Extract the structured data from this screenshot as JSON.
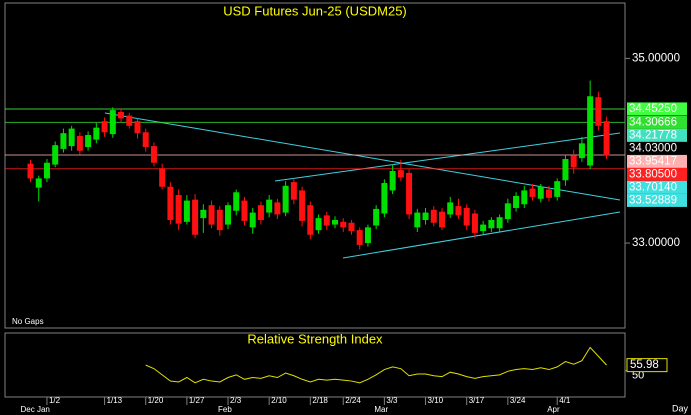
{
  "chart_data": [
    {
      "type": "candlestick",
      "title": "USD Futures Jun-25 (USDM25)",
      "mode_label": "No Gaps",
      "period_label": "Day",
      "categories": [
        null,
        null,
        "1/2",
        null,
        null,
        null,
        null,
        null,
        null,
        "1/13",
        null,
        null,
        null,
        null,
        "1/20",
        null,
        null,
        null,
        null,
        "1/27",
        null,
        null,
        null,
        null,
        "2/3",
        null,
        null,
        null,
        null,
        "2/10",
        null,
        null,
        null,
        null,
        "2/18",
        null,
        null,
        null,
        "2/24",
        null,
        null,
        null,
        null,
        "3/3",
        null,
        null,
        null,
        null,
        "3/10",
        null,
        null,
        null,
        null,
        "3/17",
        null,
        null,
        null,
        null,
        "3/24",
        null,
        null,
        null,
        null,
        null,
        "4/1",
        null,
        null,
        null,
        null,
        null,
        null
      ],
      "months": [
        "Dec",
        null,
        "Jan",
        null,
        null,
        null,
        null,
        null,
        null,
        null,
        null,
        null,
        null,
        null,
        null,
        null,
        null,
        null,
        null,
        null,
        null,
        null,
        null,
        null,
        "Feb",
        null,
        null,
        null,
        null,
        null,
        null,
        null,
        null,
        null,
        null,
        null,
        null,
        null,
        null,
        null,
        null,
        null,
        null,
        "Mar",
        null,
        null,
        null,
        null,
        null,
        null,
        null,
        null,
        null,
        null,
        null,
        null,
        null,
        null,
        null,
        null,
        null,
        null,
        null,
        null,
        "Apr",
        null,
        null,
        null,
        null,
        null,
        null
      ],
      "open": [
        33.86,
        33.6,
        33.7,
        33.85,
        34.02,
        34.05,
        34.16,
        34.04,
        34.12,
        34.32,
        34.18,
        34.42,
        34.38,
        34.32,
        34.2,
        34.05,
        33.81,
        33.61,
        33.52,
        33.23,
        33.47,
        33.27,
        33.41,
        33.36,
        33.2,
        33.35,
        33.46,
        33.17,
        33.41,
        33.33,
        33.44,
        33.33,
        33.66,
        33.57,
        33.41,
        33.14,
        33.3,
        33.2,
        33.23,
        33.22,
        33.14,
        33.0,
        33.19,
        33.32,
        33.57,
        33.79,
        33.76,
        33.17,
        33.25,
        33.36,
        33.34,
        33.31,
        33.4,
        33.38,
        33.32,
        33.13,
        33.16,
        33.16,
        33.26,
        33.38,
        33.42,
        33.59,
        33.48,
        33.58,
        33.5,
        33.68,
        33.95,
        33.92,
        33.84,
        34.58,
        34.32
      ],
      "high": [
        33.9,
        33.73,
        33.91,
        34.1,
        34.24,
        34.27,
        34.2,
        34.21,
        34.3,
        34.36,
        34.47,
        34.46,
        34.41,
        34.35,
        34.24,
        34.09,
        33.86,
        33.66,
        33.58,
        33.52,
        33.53,
        33.42,
        33.46,
        33.4,
        33.44,
        33.58,
        33.5,
        33.38,
        33.45,
        33.52,
        33.48,
        33.67,
        33.7,
        33.61,
        33.45,
        33.31,
        33.34,
        33.29,
        33.27,
        33.25,
        33.17,
        33.2,
        33.41,
        33.69,
        33.85,
        33.9,
        33.8,
        33.37,
        33.38,
        33.4,
        33.38,
        33.5,
        33.48,
        33.42,
        33.36,
        33.24,
        33.28,
        33.31,
        33.48,
        33.55,
        33.62,
        33.64,
        33.64,
        33.62,
        33.7,
        33.96,
        34.01,
        34.15,
        34.76,
        34.64,
        34.37
      ],
      "low": [
        33.66,
        33.45,
        33.66,
        33.82,
        33.98,
        34.0,
        33.96,
        34.0,
        34.08,
        34.15,
        34.14,
        34.31,
        34.24,
        34.13,
        33.99,
        33.83,
        33.58,
        33.2,
        33.14,
        33.2,
        33.05,
        33.11,
        33.16,
        33.08,
        33.15,
        33.3,
        33.19,
        33.1,
        33.2,
        33.28,
        33.26,
        33.29,
        33.42,
        33.18,
        33.04,
        33.1,
        33.14,
        33.16,
        33.12,
        33.09,
        32.93,
        32.96,
        33.15,
        33.28,
        33.53,
        33.67,
        33.26,
        33.12,
        33.2,
        33.18,
        33.14,
        33.27,
        33.26,
        33.14,
        33.05,
        33.09,
        33.12,
        33.12,
        33.22,
        33.34,
        33.38,
        33.46,
        33.44,
        33.45,
        33.46,
        33.62,
        33.75,
        33.88,
        33.8,
        34.22,
        33.91
      ],
      "close": [
        33.7,
        33.7,
        33.87,
        34.06,
        34.19,
        34.24,
        34.0,
        34.17,
        34.25,
        34.2,
        34.44,
        34.35,
        34.27,
        34.19,
        34.04,
        33.87,
        33.61,
        33.25,
        33.21,
        33.46,
        33.09,
        33.36,
        33.2,
        33.14,
        33.41,
        33.55,
        33.24,
        33.33,
        33.25,
        33.47,
        33.31,
        33.62,
        33.47,
        33.24,
        33.09,
        33.27,
        33.19,
        33.25,
        33.17,
        33.13,
        32.98,
        33.17,
        33.37,
        33.65,
        33.78,
        33.71,
        33.31,
        33.33,
        33.33,
        33.22,
        33.17,
        33.44,
        33.3,
        33.19,
        33.11,
        33.2,
        33.25,
        33.28,
        33.43,
        33.51,
        33.57,
        33.5,
        33.61,
        33.49,
        33.67,
        33.91,
        33.82,
        34.08,
        34.59,
        34.27,
        33.95
      ],
      "up_color": "#00e000",
      "down_color": "#ff1010",
      "ylim": [
        32.08,
        35.6
      ],
      "yticks": [
        {
          "value": 35,
          "label": "35.00000"
        },
        {
          "value": 33,
          "label": "33.00000"
        }
      ],
      "levels": [
        {
          "value": 34.4525,
          "label": "34.45250",
          "color": "#40ff40",
          "text_color": "#000000",
          "line": true
        },
        {
          "value": 34.30666,
          "label": "34.30666",
          "color": "#30e030",
          "text_color": "#000000",
          "line": true
        },
        {
          "value": 34.21778,
          "label": "34.21778",
          "color": "#40e0c0",
          "text_color": "#000000",
          "line": false
        },
        {
          "value": 34.03,
          "label": "34.03000",
          "color": "#000000",
          "text_color": "#ffff00",
          "line": false
        },
        {
          "value": 33.95417,
          "label": "33.95417",
          "color": "#ffb0b0",
          "text_color": "#000000",
          "line": true
        },
        {
          "value": 33.805,
          "label": "33.80500",
          "color": "#ff2020",
          "text_color": "#000000",
          "line": true
        },
        {
          "value": 33.7014,
          "label": "33.70140",
          "color": "#40e0e0",
          "text_color": "#000000",
          "line": false
        },
        {
          "value": 33.52889,
          "label": "33.52889",
          "color": "#40e0e0",
          "text_color": "#000000",
          "line": false
        }
      ]
    },
    {
      "type": "line",
      "title": "Relative Strength Index",
      "color": "#e0e000",
      "values": [
        null,
        null,
        null,
        null,
        null,
        null,
        null,
        null,
        null,
        null,
        null,
        null,
        null,
        null,
        56,
        52,
        45,
        38,
        37,
        42,
        36,
        40,
        38,
        37,
        42,
        45,
        40,
        42,
        41,
        44,
        42,
        47,
        44,
        40,
        37,
        40,
        39,
        40,
        39,
        38,
        36,
        40,
        45,
        51,
        54,
        52,
        44,
        46,
        46,
        44,
        43,
        48,
        46,
        43,
        41,
        43,
        44,
        45,
        49,
        51,
        52,
        51,
        53,
        51,
        54,
        60,
        57,
        61,
        76,
        66,
        55.98
      ],
      "ylim": [
        20,
        90
      ],
      "yticks": [
        50
      ]
    }
  ]
}
